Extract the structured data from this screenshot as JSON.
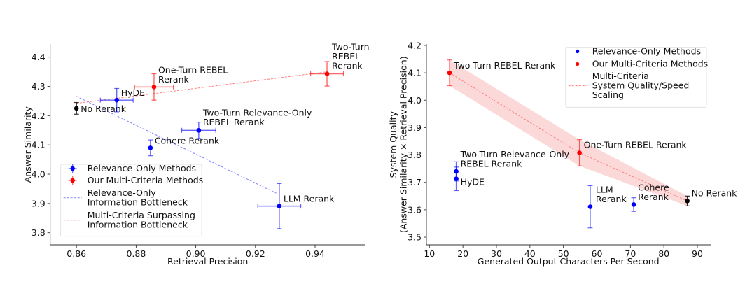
{
  "chart_data": [
    {
      "type": "scatter",
      "xlabel": "Retrieval Precision",
      "ylabel": "Answer Similarity",
      "xlim": [
        0.8512,
        0.9569
      ],
      "ylim": [
        3.7586,
        4.4447
      ],
      "xticks": [
        0.86,
        0.88,
        0.9,
        0.92,
        0.94
      ],
      "xtick_labels": [
        "0.86",
        "0.88",
        "0.90",
        "0.92",
        "0.94"
      ],
      "yticks": [
        3.8,
        3.9,
        4.0,
        4.1,
        4.2,
        4.3,
        4.4
      ],
      "ytick_labels": [
        "3.8",
        "3.9",
        "4.0",
        "4.1",
        "4.2",
        "4.3",
        "4.4"
      ],
      "grid": false,
      "legend_position": "lower-left",
      "legend": [
        {
          "label": "Relevance-Only Methods",
          "kind": "errorbar",
          "color": "#0000ff"
        },
        {
          "label": "Our Multi-Criteria Methods",
          "kind": "errorbar",
          "color": "#ff0000"
        },
        {
          "label": "Relevance-Only\nInformation Bottleneck",
          "kind": "dashed",
          "color": "#8080ff"
        },
        {
          "label": "Multi-Criteria Surpassing\nInformation Bottleneck",
          "kind": "dashed",
          "color": "#ff8080"
        }
      ],
      "points": [
        {
          "label": "No Rerank",
          "group": "baseline",
          "color": "#000000",
          "x": 0.86,
          "y": 4.225,
          "xerr": 0,
          "yerr": 0.02
        },
        {
          "label": "HyDE",
          "group": "relevance",
          "color": "#0000ff",
          "x": 0.8735,
          "y": 4.253,
          "xerr": 0.0055,
          "yerr": 0.04
        },
        {
          "label": "One-Turn REBEL\nRerank",
          "group": "multi",
          "color": "#ff0000",
          "x": 0.886,
          "y": 4.298,
          "xerr": 0.0065,
          "yerr": 0.045
        },
        {
          "label": "Two-Turn\nREBEL\nRerank",
          "group": "multi",
          "color": "#ff0000",
          "x": 0.944,
          "y": 4.343,
          "xerr": 0.0055,
          "yerr": 0.042
        },
        {
          "label": "Two-Turn Relevance-Only\nREBEL Rerank",
          "group": "relevance",
          "color": "#0000ff",
          "x": 0.901,
          "y": 4.15,
          "xerr": 0.0057,
          "yerr": 0.028
        },
        {
          "label": "Cohere Rerank",
          "group": "relevance",
          "color": "#0000ff",
          "x": 0.8848,
          "y": 4.09,
          "xerr": 0,
          "yerr": 0.027
        },
        {
          "label": "LLM Rerank",
          "group": "relevance",
          "color": "#0000ff",
          "x": 0.928,
          "y": 3.891,
          "xerr": 0.0072,
          "yerr": 0.077
        }
      ],
      "lines": [
        {
          "name": "Relevance-Only Information Bottleneck",
          "color": "#8080ff",
          "x": [
            0.86,
            0.927
          ],
          "y": [
            4.266,
            3.935
          ]
        },
        {
          "name": "Multi-Criteria Surpassing Information Bottleneck",
          "color": "#ff8080",
          "x": [
            0.86,
            0.944
          ],
          "y": [
            4.242,
            4.35
          ]
        }
      ]
    },
    {
      "type": "scatter",
      "xlabel": "Generated Output Characters Per Second",
      "ylabel": "System Quality\n(Answer Similarity × Retrieval Precision)",
      "xlim": [
        9.1,
        93.97
      ],
      "ylim": [
        3.472,
        4.205
      ],
      "xticks": [
        10,
        20,
        30,
        40,
        50,
        60,
        70,
        80,
        90
      ],
      "xtick_labels": [
        "10",
        "20",
        "30",
        "40",
        "50",
        "60",
        "70",
        "80",
        "90"
      ],
      "yticks": [
        3.5,
        3.6,
        3.7,
        3.8,
        3.9,
        4.0,
        4.1,
        4.2
      ],
      "ytick_labels": [
        "3.5",
        "3.6",
        "3.7",
        "3.8",
        "3.9",
        "4.0",
        "4.1",
        "4.2"
      ],
      "grid": false,
      "legend_position": "upper-right",
      "legend": [
        {
          "label": "Relevance-Only Methods",
          "kind": "dot",
          "color": "#0000ff"
        },
        {
          "label": "Our Multi-Criteria Methods",
          "kind": "dot",
          "color": "#ff0000"
        },
        {
          "label": "Multi-Criteria\nSystem Quality/Speed\nScaling",
          "kind": "dashed",
          "color": "#ff8080"
        }
      ],
      "points": [
        {
          "label": "Two-Turn REBEL Rerank",
          "group": "multi",
          "color": "#ff0000",
          "x": 16,
          "y": 4.1,
          "yerr": 0.047
        },
        {
          "label": "One-Turn REBEL Rerank",
          "group": "multi",
          "color": "#ff0000",
          "x": 54.8,
          "y": 3.808,
          "yerr": 0.048
        },
        {
          "label": "Two-Turn Relevance-Only\nREBEL Rerank",
          "group": "relevance",
          "color": "#0000ff",
          "x": 18,
          "y": 3.74,
          "yerr": 0.035
        },
        {
          "label": "HyDE",
          "group": "relevance",
          "color": "#0000ff",
          "x": 18,
          "y": 3.713,
          "yerr": 0.043
        },
        {
          "label": "LLM\nRerank",
          "group": "relevance",
          "color": "#0000ff",
          "x": 58,
          "y": 3.611,
          "yerr": 0.077
        },
        {
          "label": "Cohere\nRerank",
          "group": "relevance",
          "color": "#0000ff",
          "x": 71,
          "y": 3.619,
          "yerr": 0.025
        },
        {
          "label": "No Rerank",
          "group": "baseline",
          "color": "#000000",
          "x": 87,
          "y": 3.632,
          "yerr": 0.018
        }
      ],
      "lines": [
        {
          "name": "Multi-Criteria System Quality/Speed Scaling",
          "color": "#ff8080",
          "x": [
            16,
            54.8,
            87
          ],
          "y": [
            4.1,
            3.808,
            3.632
          ],
          "band_upper": [
            4.147,
            3.856,
            3.65
          ],
          "band_lower": [
            4.053,
            3.76,
            3.614
          ],
          "band_color": "#fcd9d9"
        }
      ]
    }
  ]
}
